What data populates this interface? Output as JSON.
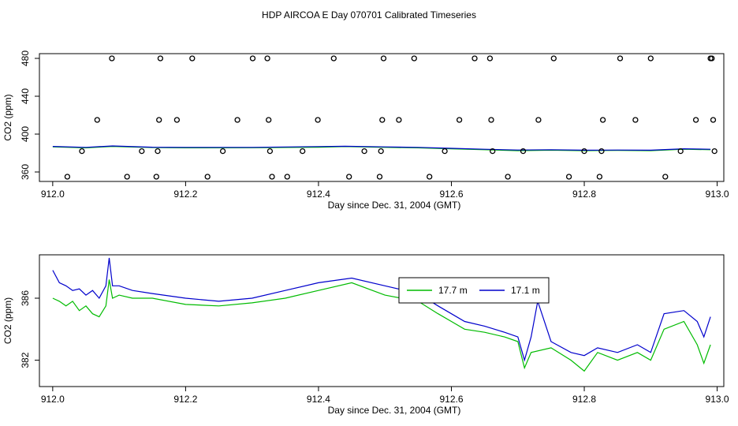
{
  "figure_title": "HDP AIRCOA E  Day 070701  Calibrated Timeseries",
  "chart_data": [
    {
      "type": "line+scatter",
      "xlabel": "Day since Dec. 31, 2004 (GMT)",
      "ylabel": "CO2 (ppm)",
      "xlim": [
        911.98,
        913.01
      ],
      "ylim": [
        350,
        485
      ],
      "xticks": [
        "912.0",
        "912.2",
        "912.4",
        "912.6",
        "912.8",
        "913.0"
      ],
      "yticks": [
        "360",
        "400",
        "440",
        "480"
      ],
      "ytick_values": [
        360,
        400,
        440,
        480
      ],
      "xtick_values": [
        912.0,
        912.2,
        912.4,
        912.6,
        912.8,
        913.0
      ],
      "grid": false,
      "series": [
        {
          "color": "#00bb00",
          "x": [
            912.0,
            912.05,
            912.09,
            912.15,
            912.2,
            912.3,
            912.4,
            912.44,
            912.5,
            912.55,
            912.6,
            912.65,
            912.7,
            912.75,
            912.8,
            912.85,
            912.9,
            912.95,
            912.99
          ],
          "values": [
            386.5,
            385.5,
            387.0,
            385.8,
            385.5,
            385.6,
            386.2,
            386.8,
            386.0,
            385.5,
            384.5,
            383.5,
            382.5,
            383.0,
            382.5,
            382.8,
            382.5,
            384.0,
            383.5
          ]
        },
        {
          "color": "#0000cc",
          "x": [
            912.0,
            912.05,
            912.09,
            912.15,
            912.2,
            912.3,
            912.4,
            912.44,
            912.5,
            912.55,
            912.6,
            912.65,
            912.7,
            912.75,
            912.8,
            912.85,
            912.9,
            912.95,
            912.99
          ],
          "values": [
            387.0,
            386.0,
            387.5,
            386.2,
            386.0,
            386.0,
            386.8,
            387.2,
            386.5,
            386.0,
            385.0,
            384.0,
            383.2,
            383.5,
            383.0,
            383.2,
            383.0,
            384.5,
            384.0
          ]
        }
      ],
      "scatter": {
        "color": "#000000",
        "x": [
          912.022,
          912.044,
          912.067,
          912.089,
          912.112,
          912.134,
          912.156,
          912.158,
          912.16,
          912.162,
          912.187,
          912.21,
          912.233,
          912.256,
          912.278,
          912.301,
          912.323,
          912.325,
          912.327,
          912.33,
          912.353,
          912.376,
          912.399,
          912.423,
          912.446,
          912.469,
          912.492,
          912.494,
          912.496,
          912.498,
          912.521,
          912.544,
          912.567,
          912.59,
          912.612,
          912.635,
          912.658,
          912.66,
          912.662,
          912.685,
          912.708,
          912.731,
          912.754,
          912.777,
          912.8,
          912.823,
          912.826,
          912.828,
          912.854,
          912.877,
          912.9,
          912.922,
          912.945,
          912.968,
          912.99,
          912.992,
          912.994,
          912.996
        ],
        "values": [
          355,
          382,
          415,
          480,
          355,
          382,
          355,
          382,
          415,
          480,
          415,
          480,
          355,
          382,
          415,
          480,
          480,
          415,
          382,
          355,
          355,
          382,
          415,
          480,
          355,
          382,
          355,
          382,
          415,
          480,
          415,
          480,
          355,
          382,
          415,
          480,
          480,
          415,
          382,
          355,
          382,
          415,
          480,
          355,
          382,
          355,
          382,
          415,
          480,
          415,
          480,
          355,
          382,
          415,
          480,
          480,
          415,
          382
        ]
      }
    },
    {
      "type": "line",
      "xlabel": "Day since Dec. 31, 2004 (GMT)",
      "ylabel": "CO2 (ppm)",
      "xlim": [
        911.98,
        913.01
      ],
      "ylim": [
        380.3,
        388.8
      ],
      "xticks": [
        "912.0",
        "912.2",
        "912.4",
        "912.6",
        "912.8",
        "913.0"
      ],
      "yticks": [
        "382",
        "386"
      ],
      "ytick_values": [
        382,
        386
      ],
      "xtick_values": [
        912.0,
        912.2,
        912.4,
        912.6,
        912.8,
        913.0
      ],
      "grid": false,
      "legend_position": "top-right",
      "series": [
        {
          "name": "17.7 m",
          "color": "#00bb00",
          "x": [
            912.0,
            912.01,
            912.02,
            912.03,
            912.04,
            912.05,
            912.06,
            912.07,
            912.08,
            912.085,
            912.09,
            912.1,
            912.12,
            912.15,
            912.2,
            912.25,
            912.3,
            912.35,
            912.4,
            912.45,
            912.5,
            912.55,
            912.58,
            912.6,
            912.62,
            912.65,
            912.68,
            912.7,
            912.71,
            912.72,
            912.75,
            912.78,
            912.8,
            912.82,
            912.85,
            912.88,
            912.9,
            912.92,
            912.95,
            912.97,
            912.98,
            912.99
          ],
          "values": [
            386.0,
            385.8,
            385.5,
            385.8,
            385.2,
            385.5,
            385.0,
            384.8,
            385.5,
            387.2,
            386.0,
            386.2,
            386.0,
            386.0,
            385.6,
            385.5,
            385.7,
            386.0,
            386.5,
            387.0,
            386.2,
            385.8,
            385.0,
            384.5,
            384.0,
            383.8,
            383.5,
            383.2,
            381.5,
            382.5,
            382.8,
            382.0,
            381.3,
            382.5,
            382.0,
            382.5,
            382.0,
            384.0,
            384.5,
            383.0,
            381.8,
            383.0
          ]
        },
        {
          "name": "17.1 m",
          "color": "#0000cc",
          "x": [
            912.0,
            912.01,
            912.02,
            912.03,
            912.04,
            912.05,
            912.06,
            912.07,
            912.08,
            912.085,
            912.09,
            912.1,
            912.12,
            912.15,
            912.2,
            912.25,
            912.3,
            912.35,
            912.4,
            912.45,
            912.5,
            912.55,
            912.58,
            912.6,
            912.62,
            912.65,
            912.68,
            912.7,
            912.71,
            912.72,
            912.73,
            912.75,
            912.78,
            912.8,
            912.82,
            912.85,
            912.88,
            912.9,
            912.92,
            912.95,
            912.97,
            912.98,
            912.99
          ],
          "values": [
            387.8,
            387.0,
            386.8,
            386.5,
            386.6,
            386.2,
            386.5,
            386.0,
            386.8,
            388.6,
            386.8,
            386.8,
            386.5,
            386.3,
            386.0,
            385.8,
            386.0,
            386.5,
            387.0,
            387.3,
            386.8,
            386.3,
            385.5,
            385.0,
            384.5,
            384.2,
            383.8,
            383.5,
            382.0,
            383.5,
            385.8,
            383.2,
            382.5,
            382.3,
            382.8,
            382.5,
            383.0,
            382.5,
            385.0,
            385.2,
            384.5,
            383.5,
            384.8
          ]
        }
      ]
    }
  ]
}
